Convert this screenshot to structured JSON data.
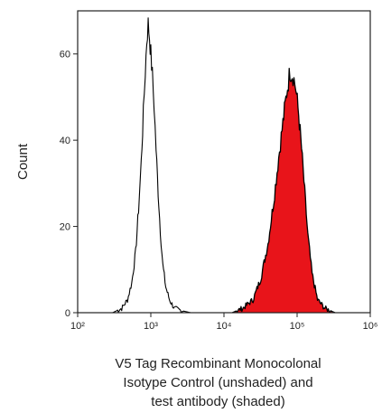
{
  "chart_data": {
    "type": "area",
    "title": "",
    "ylabel": "Count",
    "xlabel_lines": [
      "V5 Tag Recombinant Monocolonal",
      "Isotype Control (unshaded) and",
      "test antibody (shaded)"
    ],
    "x_scale": "log",
    "xlim": [
      100,
      1000000
    ],
    "ylim": [
      0,
      70
    ],
    "x_ticks": [
      100,
      1000,
      10000,
      100000,
      1000000
    ],
    "x_tick_labels": [
      "10²",
      "10³",
      "10⁴",
      "10⁵",
      "10⁶"
    ],
    "y_ticks": [
      0,
      20,
      40,
      60
    ],
    "y_tick_labels": [
      "0",
      "20",
      "40",
      "60"
    ],
    "grid": false,
    "series": [
      {
        "style": "unshaded",
        "color": "#000000",
        "x": [
          300,
          400,
          480,
          550,
          620,
          680,
          740,
          790,
          840,
          880,
          920,
          960,
          1000,
          1050,
          1110,
          1180,
          1260,
          1350,
          1460,
          1600,
          1800,
          2100,
          2600,
          3500
        ],
        "y": [
          0,
          1,
          3,
          7,
          14,
          24,
          35,
          46,
          56,
          63,
          67,
          64,
          60,
          55,
          48,
          38,
          28,
          19,
          11,
          6,
          3,
          1,
          0.5,
          0
        ]
      },
      {
        "style": "shaded",
        "color": "#e8141a",
        "x": [
          13000,
          18000,
          25000,
          32000,
          40000,
          48000,
          56000,
          64000,
          72000,
          80000,
          88000,
          96000,
          105000,
          115000,
          127000,
          140000,
          160000,
          190000,
          240000,
          330000
        ],
        "y": [
          0,
          1,
          3,
          8,
          16,
          26,
          36,
          44,
          51,
          56,
          55,
          52,
          46,
          38,
          28,
          18,
          9,
          3,
          1,
          0
        ]
      }
    ]
  }
}
